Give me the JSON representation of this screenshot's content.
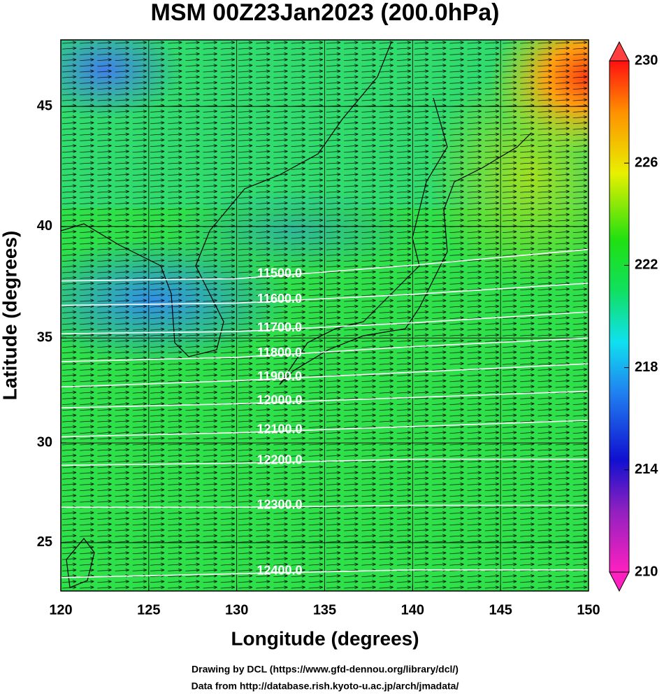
{
  "chart_data": {
    "type": "contour-map",
    "title": "MSM 00Z23Jan2023 (200.0hPa)",
    "x_label": "Longitude (degrees)",
    "y_label": "Latitude  (degrees)",
    "projection": "mercator",
    "xlim": [
      120,
      150
    ],
    "xticks": [
      120,
      125,
      130,
      135,
      140,
      145,
      150
    ],
    "ylim": [
      22.5,
      47.6
    ],
    "yticks": [
      25,
      30,
      35,
      40,
      45
    ],
    "grid": true,
    "contour_color": "#ffffff",
    "contour_lons": [
      120,
      130,
      140,
      150
    ],
    "contours": [
      {
        "label": "11500.0",
        "lats": [
          37.6,
          37.7,
          38.3,
          39.0
        ]
      },
      {
        "label": "11600.0",
        "lats": [
          36.5,
          36.6,
          37.0,
          37.5
        ]
      },
      {
        "label": "11700.0",
        "lats": [
          35.2,
          35.3,
          35.7,
          36.2
        ]
      },
      {
        "label": "11800.0",
        "lats": [
          33.9,
          34.1,
          34.6,
          35.0
        ]
      },
      {
        "label": "11900.0",
        "lats": [
          32.7,
          33.0,
          33.4,
          33.8
        ]
      },
      {
        "label": "12000.0",
        "lats": [
          31.7,
          31.9,
          32.2,
          32.5
        ]
      },
      {
        "label": "12100.0",
        "lats": [
          30.3,
          30.5,
          30.8,
          31.1
        ]
      },
      {
        "label": "12200.0",
        "lats": [
          28.9,
          29.0,
          29.2,
          29.2
        ]
      },
      {
        "label": "12300.0",
        "lats": [
          26.8,
          26.8,
          26.9,
          26.9
        ]
      },
      {
        "label": "12400.0",
        "lats": [
          23.2,
          23.4,
          23.6,
          23.6
        ]
      }
    ],
    "colorbar": {
      "lim": [
        210,
        230
      ],
      "ticks": [
        210,
        214,
        218,
        222,
        226,
        230
      ]
    },
    "footer": [
      "Drawing by DCL (https://www.gfd-dennou.org/library/dcl/)",
      "Data from http://database.rish.kyoto-u.ac.jp/arch/jmadata/"
    ]
  }
}
